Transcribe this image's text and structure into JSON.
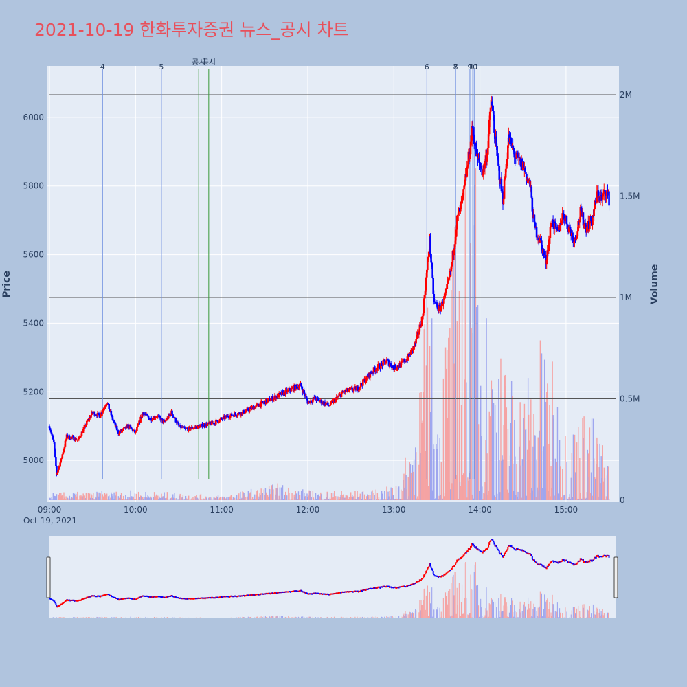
{
  "title": "2021-10-19 한화투자증권 뉴스_공시 차트",
  "colors": {
    "background": "#b0c4de",
    "plot_bg": "#e5ecf6",
    "title": "#e8505b",
    "up": "#ff0000",
    "down": "#0000ff",
    "news_line": "#6f8fe0",
    "disclosure_line": "#3a9a3a",
    "volume_line": "#555555"
  },
  "chart_data": {
    "type": "candlestick",
    "date_label": "Oct 19, 2021",
    "x_ticks": [
      "09:00",
      "10:00",
      "11:00",
      "12:00",
      "13:00",
      "14:00",
      "15:00"
    ],
    "x_range": [
      "09:00",
      "15:35"
    ],
    "price_axis": {
      "title": "Price",
      "range": [
        4880,
        6150
      ],
      "ticks": [
        5000,
        5200,
        5400,
        5600,
        5800,
        6000
      ]
    },
    "volume_axis": {
      "title": "Volume",
      "range": [
        0,
        2000000
      ],
      "ticks": [
        0,
        500000,
        1000000,
        1500000,
        2000000
      ],
      "tick_labels": [
        "0",
        "0.5M",
        "1M",
        "1.5M",
        "2M"
      ]
    },
    "price_path": [
      [
        "09:00",
        5100
      ],
      [
        "09:03",
        5050
      ],
      [
        "09:05",
        4960
      ],
      [
        "09:08",
        5000
      ],
      [
        "09:12",
        5070
      ],
      [
        "09:20",
        5060
      ],
      [
        "09:26",
        5110
      ],
      [
        "09:30",
        5140
      ],
      [
        "09:35",
        5130
      ],
      [
        "09:40",
        5170
      ],
      [
        "09:44",
        5120
      ],
      [
        "09:48",
        5080
      ],
      [
        "09:55",
        5100
      ],
      [
        "10:00",
        5080
      ],
      [
        "10:05",
        5140
      ],
      [
        "10:10",
        5120
      ],
      [
        "10:15",
        5130
      ],
      [
        "10:20",
        5110
      ],
      [
        "10:25",
        5140
      ],
      [
        "10:30",
        5100
      ],
      [
        "10:35",
        5090
      ],
      [
        "10:45",
        5100
      ],
      [
        "10:55",
        5110
      ],
      [
        "11:05",
        5130
      ],
      [
        "11:15",
        5140
      ],
      [
        "11:25",
        5160
      ],
      [
        "11:35",
        5180
      ],
      [
        "11:45",
        5200
      ],
      [
        "11:55",
        5220
      ],
      [
        "12:00",
        5170
      ],
      [
        "12:05",
        5180
      ],
      [
        "12:15",
        5160
      ],
      [
        "12:25",
        5200
      ],
      [
        "12:35",
        5210
      ],
      [
        "12:45",
        5260
      ],
      [
        "12:55",
        5290
      ],
      [
        "13:00",
        5270
      ],
      [
        "13:05",
        5280
      ],
      [
        "13:10",
        5300
      ],
      [
        "13:15",
        5340
      ],
      [
        "13:20",
        5420
      ],
      [
        "13:25",
        5640
      ],
      [
        "13:28",
        5460
      ],
      [
        "13:32",
        5440
      ],
      [
        "13:36",
        5480
      ],
      [
        "13:40",
        5560
      ],
      [
        "13:44",
        5700
      ],
      [
        "13:48",
        5760
      ],
      [
        "13:52",
        5880
      ],
      [
        "13:55",
        5970
      ],
      [
        "13:58",
        5880
      ],
      [
        "14:02",
        5840
      ],
      [
        "14:05",
        5900
      ],
      [
        "14:08",
        6050
      ],
      [
        "14:12",
        5880
      ],
      [
        "14:16",
        5760
      ],
      [
        "14:20",
        5940
      ],
      [
        "14:25",
        5880
      ],
      [
        "14:30",
        5860
      ],
      [
        "14:35",
        5800
      ],
      [
        "14:38",
        5680
      ],
      [
        "14:42",
        5640
      ],
      [
        "14:46",
        5580
      ],
      [
        "14:50",
        5700
      ],
      [
        "14:54",
        5660
      ],
      [
        "14:58",
        5720
      ],
      [
        "15:02",
        5680
      ],
      [
        "15:06",
        5640
      ],
      [
        "15:10",
        5720
      ],
      [
        "15:14",
        5680
      ],
      [
        "15:18",
        5700
      ],
      [
        "15:22",
        5780
      ],
      [
        "15:25",
        5760
      ],
      [
        "15:28",
        5790
      ],
      [
        "15:30",
        5760
      ]
    ],
    "volume_envelope": [
      [
        "09:00",
        30000
      ],
      [
        "10:00",
        40000
      ],
      [
        "11:00",
        20000
      ],
      [
        "11:40",
        70000
      ],
      [
        "12:00",
        40000
      ],
      [
        "12:45",
        40000
      ],
      [
        "13:00",
        60000
      ],
      [
        "13:10",
        200000
      ],
      [
        "13:25",
        900000
      ],
      [
        "13:30",
        400000
      ],
      [
        "13:45",
        1300000
      ],
      [
        "13:55",
        1500000
      ],
      [
        "14:05",
        800000
      ],
      [
        "14:15",
        600000
      ],
      [
        "14:30",
        500000
      ],
      [
        "14:45",
        700000
      ],
      [
        "15:00",
        300000
      ],
      [
        "15:15",
        400000
      ],
      [
        "15:25",
        250000
      ],
      [
        "15:30",
        200000
      ]
    ],
    "volume_reference_lines": [
      500000,
      1000000,
      1500000,
      2000000
    ],
    "markers": [
      {
        "label": "4",
        "time": "09:37",
        "kind": "news"
      },
      {
        "label": "5",
        "time": "10:18",
        "kind": "news"
      },
      {
        "label": "공시",
        "time": "10:44",
        "kind": "disclosure"
      },
      {
        "label": "공시",
        "time": "10:51",
        "kind": "disclosure"
      },
      {
        "label": "6",
        "time": "13:23",
        "kind": "news"
      },
      {
        "label": "7",
        "time": "13:43",
        "kind": "news"
      },
      {
        "label": "8",
        "time": "13:43",
        "kind": "news"
      },
      {
        "label": "9",
        "time": "13:53",
        "kind": "news"
      },
      {
        "label": "10",
        "time": "13:55",
        "kind": "news"
      },
      {
        "label": "11",
        "time": "13:56",
        "kind": "news"
      }
    ]
  }
}
